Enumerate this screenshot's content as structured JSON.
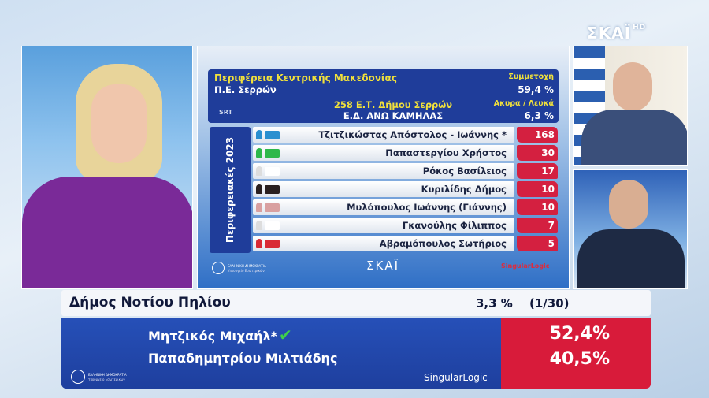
{
  "channel": {
    "logo": "ΣΚΑΪ",
    "hd": "HD"
  },
  "results_panel": {
    "region": "Περιφέρεια Κεντρικής Μακεδονίας",
    "unit": "Π.Ε. Σερρών",
    "turnout_label": "Συμμετοχή",
    "turnout_value": "59,4 %",
    "station": "258 Ε.Τ. Δήμου Σερρών",
    "district": "Ε.Δ. ΑΝΩ ΚΑΜΗΛΑΣ",
    "invalid_label": "Ακυρα / Λευκά",
    "invalid_value": "6,3 %",
    "source_logo": "SRT",
    "side_label": "Περιφερειακές 2023",
    "candidates": [
      {
        "name": "Τζιτζικώστας Απόστολος - Ιωάννης *",
        "votes": "168",
        "color": "#2a8fd0"
      },
      {
        "name": "Παπαστεργίου Χρήστος",
        "votes": "30",
        "color": "#2db84a"
      },
      {
        "name": "Ρόκος Βασίλειος",
        "votes": "17",
        "color": "#ffffff"
      },
      {
        "name": "Κυριλίδης Δήμος",
        "votes": "10",
        "color": "#2a2020"
      },
      {
        "name": "Μυλόπουλος Ιωάννης (Γιάννης)",
        "votes": "10",
        "color": "#d9a0a0"
      },
      {
        "name": "Γκανούλης Φίλιππος",
        "votes": "7",
        "color": "#ffffff"
      },
      {
        "name": "Αβραμόπουλος Σωτήριος",
        "votes": "5",
        "color": "#d92a35"
      }
    ],
    "footer_gov": "ΕΛΛΗΝΙΚΗ ΔΗΜΟΚΡΑΤΙΑ",
    "footer_ministry": "Υπουργείο Εσωτερικών",
    "footer_channel": "ΣΚΑΪ",
    "footer_partner": "SingularLogic"
  },
  "lower_third": {
    "municipality": "Δήμος Νοτίου Πηλίου",
    "counted": "3,3 %",
    "stations": "(1/30)",
    "candidates": [
      {
        "name": "Μητζικός Μιχαήλ*",
        "pct": "52,4%",
        "winner": true
      },
      {
        "name": "Παπαδημητρίου Μιλτιάδης",
        "pct": "40,5%",
        "winner": false
      }
    ],
    "gov": "ΕΛΛΗΝΙΚΗ ΔΗΜΟΚΡΑΤΙΑ",
    "ministry": "Υπουργείο Εσωτερικών",
    "partner": "SingularLogic",
    "accent_red": "#d81b3a",
    "accent_blue": "#2650b8"
  }
}
